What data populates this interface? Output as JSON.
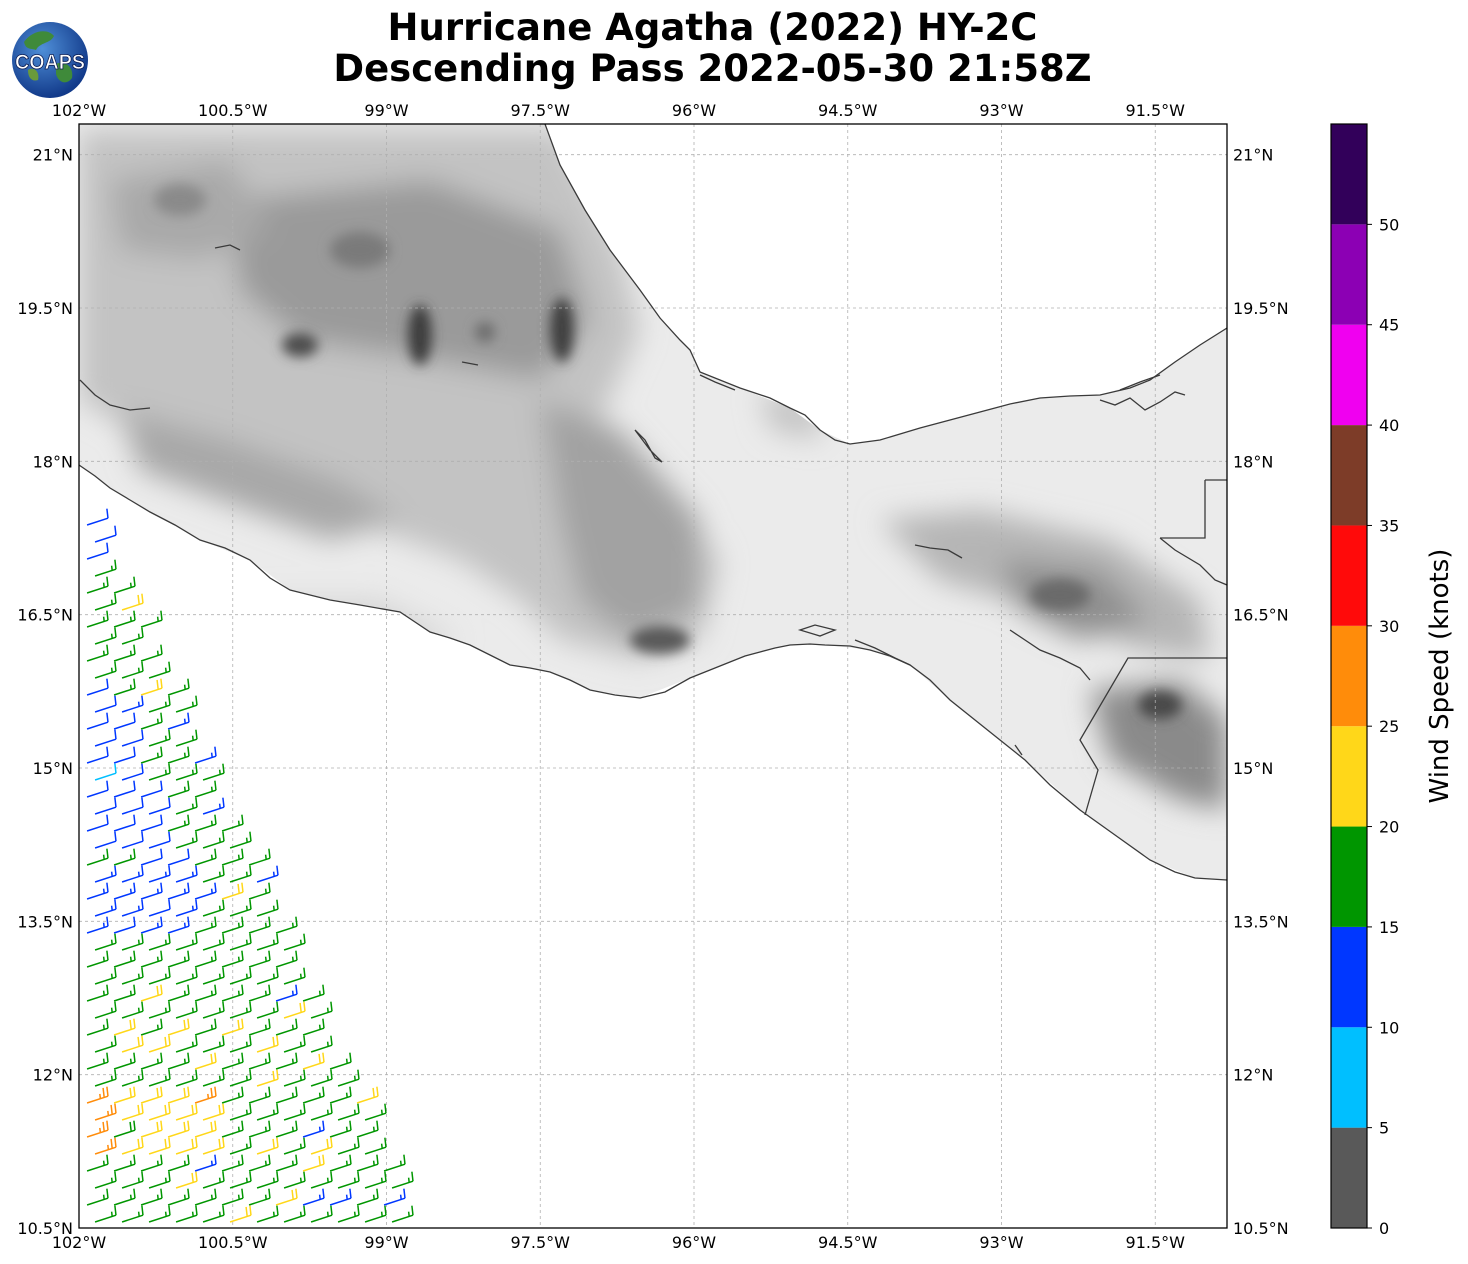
{
  "title": {
    "line1": "Hurricane Agatha (2022) HY-2C",
    "line2": "Descending Pass 2022-05-30 21:58Z"
  },
  "logo": {
    "text": "COAPS",
    "icon": "globe-logo-icon"
  },
  "map": {
    "projection": "PlateCarree",
    "lon_range": [
      -102.0,
      -90.8
    ],
    "lat_range": [
      10.5,
      21.3
    ],
    "lon_ticks": [
      "102°W",
      "100.5°W",
      "99°W",
      "97.5°W",
      "96°W",
      "94.5°W",
      "93°W",
      "91.5°W"
    ],
    "lat_ticks": [
      "21°N",
      "19.5°N",
      "18°N",
      "16.5°N",
      "15°N",
      "13.5°N",
      "12°N",
      "10.5°N"
    ],
    "gridlines": true,
    "background": "topography-grayscale",
    "wind_barbs": "HY-2C scatterometer wind barbs over ocean swath in lower-left, colored by wind speed (mostly 10-20 kt, a few 20-30 kt near 11.5°N)"
  },
  "colorbar": {
    "label": "Wind Speed (knots)",
    "ticks": [
      "0",
      "5",
      "10",
      "15",
      "20",
      "25",
      "30",
      "35",
      "40",
      "45",
      "50"
    ],
    "bins": [
      {
        "from": 0,
        "to": 5,
        "color": "#595959"
      },
      {
        "from": 5,
        "to": 10,
        "color": "#00bfff"
      },
      {
        "from": 10,
        "to": 15,
        "color": "#0037ff"
      },
      {
        "from": 15,
        "to": 20,
        "color": "#009600"
      },
      {
        "from": 20,
        "to": 25,
        "color": "#ffd719"
      },
      {
        "from": 25,
        "to": 30,
        "color": "#ff8c0a"
      },
      {
        "from": 30,
        "to": 35,
        "color": "#ff0a0a"
      },
      {
        "from": 35,
        "to": 40,
        "color": "#7d3c28"
      },
      {
        "from": 40,
        "to": 45,
        "color": "#f000f0"
      },
      {
        "from": 45,
        "to": 50,
        "color": "#8c00b4"
      },
      {
        "from": 50,
        "to": 55,
        "color": "#32005a"
      }
    ]
  }
}
